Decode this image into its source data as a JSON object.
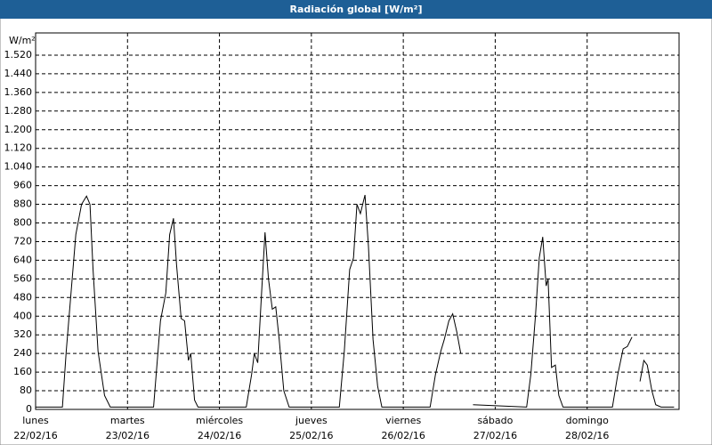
{
  "chart_data": {
    "type": "line",
    "title": "Radiación global [W/m²]",
    "y_unit": "W/m²",
    "xlim": [
      0,
      168
    ],
    "xticks": [
      {
        "value": 0,
        "label": "22/02/16"
      },
      {
        "value": 24,
        "label": "23/02/16"
      },
      {
        "value": 48,
        "label": "24/02/16"
      },
      {
        "value": 72,
        "label": "25/02/16"
      },
      {
        "value": 96,
        "label": "26/02/16"
      },
      {
        "value": 120,
        "label": "27/02/16"
      },
      {
        "value": 144,
        "label": "28/02/16"
      }
    ],
    "xtick_days": [
      "lunes",
      "martes",
      "miércoles",
      "jueves",
      "viernes",
      "sábado",
      "domingo"
    ],
    "ylim": [
      0,
      1600
    ],
    "yticks": [
      0,
      80,
      160,
      240,
      320,
      400,
      480,
      560,
      640,
      720,
      800,
      880,
      960,
      {
        "value": 1040,
        "label": "1.040"
      },
      {
        "value": 1120,
        "label": "1.120"
      },
      {
        "value": 1200,
        "label": "1.200"
      },
      {
        "value": 1280,
        "label": "1.280"
      },
      {
        "value": 1360,
        "label": "1.360"
      },
      {
        "value": 1440,
        "label": "1.440"
      },
      {
        "value": 1520,
        "label": "1.520"
      }
    ],
    "grid": true,
    "color": "#000000",
    "x": [
      0,
      7,
      8,
      10.5,
      12,
      13.3,
      14.2,
      15,
      16.3,
      18,
      19.5,
      30.8,
      32.6,
      34,
      35,
      36,
      36.8,
      38,
      38.9,
      39.9,
      40.5,
      41.5,
      42.4,
      55,
      56.4,
      57.1,
      58,
      59,
      59.9,
      60.8,
      61.8,
      62.7,
      63.6,
      64.8,
      66.2,
      79.3,
      80.6,
      82,
      83,
      83.9,
      84.8,
      86,
      86.9,
      88.1,
      89.3,
      90.4,
      103,
      104.4,
      105.8,
      106.7,
      107.9,
      108.9,
      110,
      111,
      112.5,
      114.2,
      128.2,
      129.3,
      130.5,
      131.5,
      132.4,
      133.3,
      133.8,
      134.7,
      135.7,
      136.6,
      137.7,
      150.6,
      152,
      153.4,
      154.5,
      155.7,
      156.7,
      157.8,
      158.8,
      159.7,
      160.9,
      161.9,
      163.3,
      166.7
    ],
    "values": [
      10,
      10,
      250,
      750,
      880,
      915,
      880,
      600,
      250,
      60,
      10,
      10,
      380,
      500,
      750,
      820,
      620,
      390,
      380,
      210,
      240,
      40,
      10,
      10,
      150,
      240,
      200,
      500,
      760,
      560,
      430,
      440,
      300,
      80,
      10,
      10,
      250,
      600,
      650,
      880,
      840,
      920,
      700,
      300,
      100,
      10,
      10,
      150,
      250,
      300,
      380,
      410,
      330,
      240,
      null,
      20,
      10,
      150,
      400,
      650,
      740,
      530,
      560,
      180,
      190,
      60,
      10,
      10,
      150,
      260,
      270,
      310,
      null,
      120,
      210,
      190,
      80,
      20,
      10,
      10
    ]
  }
}
